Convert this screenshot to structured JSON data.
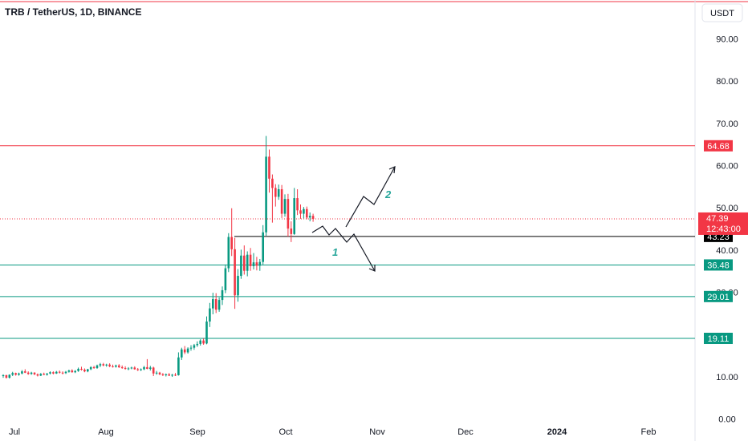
{
  "header": {
    "title": "TRB / TetherUS, 1D, BINANCE",
    "currency_button": "USDT"
  },
  "chart_data": {
    "type": "candlestick",
    "title": "TRB / TetherUS, 1D, BINANCE",
    "y_axis": {
      "ticks": [
        "90.00",
        "80.00",
        "70.00",
        "60.00",
        "50.00",
        "40.00",
        "30.00",
        "10.00",
        "0.00"
      ],
      "min": -1,
      "max": 95,
      "position": "right"
    },
    "x_axis": {
      "ticks": [
        "Jul",
        "Aug",
        "Sep",
        "Oct",
        "Nov",
        "Dec",
        "2024",
        "Feb"
      ]
    },
    "horizontal_levels": [
      {
        "price": 64.68,
        "label": "64.68",
        "color": "#f23645",
        "style": "solid"
      },
      {
        "price": 43.23,
        "label": "43.23",
        "color": "#000000",
        "style": "solid"
      },
      {
        "price": 36.48,
        "label": "36.48",
        "color": "#089981",
        "style": "solid"
      },
      {
        "price": 29.01,
        "label": "29.01",
        "color": "#089981",
        "style": "solid"
      },
      {
        "price": 19.11,
        "label": "19.11",
        "color": "#089981",
        "style": "solid"
      }
    ],
    "current_price": {
      "price": 47.39,
      "label": "47.39",
      "countdown": "12:43:00",
      "color": "#f23645"
    },
    "scenario_labels": [
      "1",
      "2"
    ],
    "colors": {
      "up": "#089981",
      "down": "#f23645",
      "scenario_label": "#26a69a"
    },
    "candles": [
      [
        10.2,
        10.6,
        9.8,
        10.4
      ],
      [
        10.4,
        10.5,
        9.6,
        9.8
      ],
      [
        9.8,
        10.6,
        9.6,
        10.5
      ],
      [
        10.5,
        11.2,
        10.2,
        10.9
      ],
      [
        10.9,
        11.0,
        10.3,
        10.5
      ],
      [
        10.5,
        11.0,
        10.3,
        10.8
      ],
      [
        10.8,
        11.6,
        10.6,
        11.3
      ],
      [
        11.3,
        11.8,
        10.9,
        11.0
      ],
      [
        11.0,
        11.3,
        10.5,
        10.7
      ],
      [
        10.7,
        11.2,
        10.5,
        11.0
      ],
      [
        11.0,
        11.1,
        10.4,
        10.6
      ],
      [
        10.6,
        10.8,
        10.1,
        10.3
      ],
      [
        10.3,
        10.9,
        10.2,
        10.7
      ],
      [
        10.7,
        11.0,
        10.4,
        10.5
      ],
      [
        10.5,
        10.9,
        10.3,
        10.8
      ],
      [
        10.8,
        11.3,
        10.6,
        11.1
      ],
      [
        11.1,
        11.3,
        10.6,
        10.8
      ],
      [
        10.8,
        11.4,
        10.7,
        11.2
      ],
      [
        11.2,
        11.5,
        10.8,
        11.0
      ],
      [
        11.0,
        11.3,
        10.6,
        10.9
      ],
      [
        10.9,
        11.4,
        10.7,
        11.2
      ],
      [
        11.2,
        11.7,
        11.0,
        11.5
      ],
      [
        11.5,
        11.8,
        11.0,
        11.1
      ],
      [
        11.1,
        11.6,
        10.9,
        11.4
      ],
      [
        11.4,
        12.2,
        11.2,
        11.9
      ],
      [
        11.9,
        12.4,
        11.5,
        11.7
      ],
      [
        11.7,
        12.0,
        11.1,
        11.3
      ],
      [
        11.3,
        11.9,
        11.1,
        11.8
      ],
      [
        11.8,
        12.5,
        11.6,
        12.3
      ],
      [
        12.3,
        12.6,
        11.9,
        12.1
      ],
      [
        12.1,
        12.9,
        11.9,
        12.7
      ],
      [
        12.7,
        13.3,
        12.3,
        13.0
      ],
      [
        13.0,
        13.3,
        12.5,
        12.7
      ],
      [
        12.7,
        13.1,
        12.4,
        12.9
      ],
      [
        12.9,
        13.2,
        12.3,
        12.5
      ],
      [
        12.5,
        12.9,
        12.2,
        12.4
      ],
      [
        12.4,
        12.9,
        12.2,
        12.7
      ],
      [
        12.7,
        13.0,
        12.1,
        12.3
      ],
      [
        12.3,
        12.7,
        11.9,
        12.1
      ],
      [
        12.1,
        12.5,
        11.7,
        11.9
      ],
      [
        11.9,
        12.3,
        11.6,
        12.0
      ],
      [
        12.0,
        12.4,
        11.8,
        12.2
      ],
      [
        12.2,
        12.5,
        11.7,
        11.8
      ],
      [
        11.8,
        12.1,
        11.4,
        11.6
      ],
      [
        11.6,
        12.0,
        11.4,
        11.8
      ],
      [
        11.8,
        12.6,
        11.6,
        12.3
      ],
      [
        12.3,
        14.2,
        11.8,
        11.9
      ],
      [
        11.9,
        12.6,
        11.5,
        12.2
      ],
      [
        12.2,
        12.4,
        10.2,
        10.8
      ],
      [
        10.8,
        11.4,
        10.5,
        11.0
      ],
      [
        11.0,
        11.2,
        10.4,
        10.6
      ],
      [
        10.6,
        10.9,
        10.2,
        10.4
      ],
      [
        10.4,
        10.8,
        10.1,
        10.6
      ],
      [
        10.6,
        10.9,
        10.2,
        10.3
      ],
      [
        10.3,
        10.7,
        10.0,
        10.5
      ],
      [
        10.5,
        10.9,
        10.2,
        10.4
      ],
      [
        10.4,
        15.8,
        10.3,
        14.6
      ],
      [
        14.6,
        16.9,
        14.0,
        16.5
      ],
      [
        16.5,
        17.3,
        15.4,
        15.8
      ],
      [
        15.8,
        17.0,
        15.5,
        16.7
      ],
      [
        16.7,
        17.5,
        16.2,
        16.9
      ],
      [
        16.9,
        17.8,
        16.4,
        17.5
      ],
      [
        17.5,
        18.4,
        17.1,
        17.8
      ],
      [
        17.8,
        18.9,
        17.4,
        18.6
      ],
      [
        18.6,
        19.1,
        17.6,
        17.9
      ],
      [
        17.9,
        24.3,
        17.7,
        23.1
      ],
      [
        23.1,
        27.5,
        21.8,
        26.2
      ],
      [
        26.2,
        29.9,
        24.8,
        28.4
      ],
      [
        28.4,
        29.8,
        25.1,
        25.9
      ],
      [
        25.9,
        28.8,
        25.4,
        28.2
      ],
      [
        28.2,
        31.4,
        27.0,
        30.5
      ],
      [
        30.5,
        36.6,
        29.8,
        35.7
      ],
      [
        35.7,
        44.0,
        34.8,
        43.1
      ],
      [
        43.1,
        49.9,
        38.6,
        40.2
      ],
      [
        40.2,
        42.9,
        26.1,
        29.3
      ],
      [
        29.3,
        35.5,
        27.8,
        33.9
      ],
      [
        33.9,
        40.1,
        33.2,
        38.7
      ],
      [
        38.7,
        41.1,
        34.2,
        35.1
      ],
      [
        35.1,
        39.7,
        33.8,
        38.9
      ],
      [
        38.9,
        40.5,
        35.1,
        36.2
      ],
      [
        36.2,
        39.3,
        35.4,
        37.1
      ],
      [
        37.1,
        38.4,
        35.2,
        36.3
      ],
      [
        36.3,
        37.9,
        35.1,
        37.2
      ],
      [
        37.2,
        45.9,
        36.6,
        44.2
      ],
      [
        44.2,
        67.0,
        43.4,
        62.1
      ],
      [
        62.1,
        63.8,
        53.6,
        56.9
      ],
      [
        56.9,
        57.9,
        46.5,
        54.7
      ],
      [
        54.7,
        55.6,
        50.3,
        52.6
      ],
      [
        52.6,
        55.5,
        51.9,
        54.4
      ],
      [
        54.4,
        55.4,
        47.6,
        48.6
      ],
      [
        48.6,
        53.2,
        47.9,
        52.1
      ],
      [
        52.1,
        53.3,
        43.2,
        45.1
      ],
      [
        45.1,
        46.8,
        41.9,
        43.8
      ],
      [
        43.8,
        54.7,
        43.6,
        52.3
      ],
      [
        52.3,
        54.4,
        48.3,
        49.4
      ],
      [
        49.4,
        50.8,
        47.4,
        48.6
      ],
      [
        48.6,
        50.2,
        47.5,
        49.7
      ],
      [
        49.7,
        50.3,
        47.3,
        47.7
      ],
      [
        47.7,
        48.9,
        46.8,
        48.1
      ],
      [
        48.1,
        48.6,
        46.7,
        47.39
      ]
    ]
  }
}
